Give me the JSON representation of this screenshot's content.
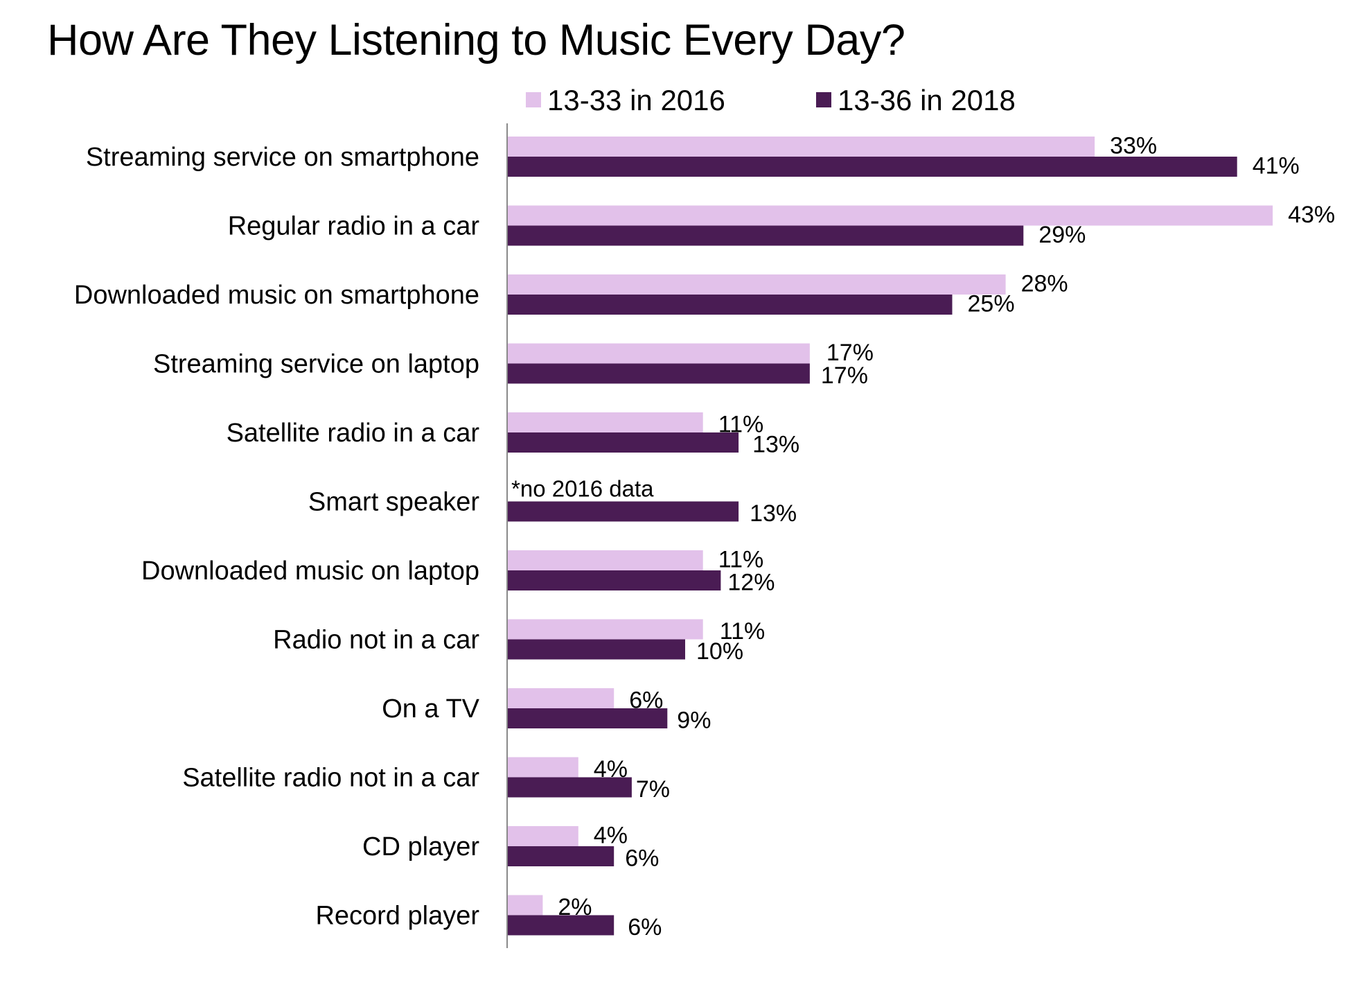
{
  "chart_data": {
    "type": "bar",
    "orientation": "horizontal",
    "title": "How Are They Listening to Music Every Day?",
    "legend_position": "top",
    "categories": [
      "Streaming service on smartphone",
      "Regular radio in a car",
      "Downloaded music on  smartphone",
      "Streaming service on laptop",
      "Satellite radio in a car",
      "Smart speaker",
      "Downloaded music on laptop",
      "Radio not in a car",
      "On a TV",
      "Satellite radio not in a car",
      "CD player",
      "Record player"
    ],
    "series": [
      {
        "name": "13-33 in 2016",
        "color": "#e2c1ea",
        "values": [
          33,
          43,
          28,
          17,
          11,
          null,
          11,
          11,
          6,
          4,
          4,
          2
        ],
        "labels": [
          "33%",
          "43%",
          "28%",
          "17%",
          "11%",
          "",
          "11%",
          "11%",
          "6%",
          "4%",
          "4%",
          "2%"
        ]
      },
      {
        "name": "13-36 in 2018",
        "color": "#4a1c54",
        "values": [
          41,
          29,
          25,
          17,
          13,
          13,
          12,
          10,
          9,
          7,
          6,
          6
        ],
        "labels": [
          "41%",
          "29%",
          "25%",
          "17%",
          "13%",
          "13%",
          "12%",
          "10%",
          "9%",
          "7%",
          "6%",
          "6%"
        ]
      }
    ],
    "annotations": [
      {
        "category": "Smart speaker",
        "text": "*no 2016 data"
      }
    ],
    "xlim": [
      0,
      43
    ],
    "grid": false
  }
}
